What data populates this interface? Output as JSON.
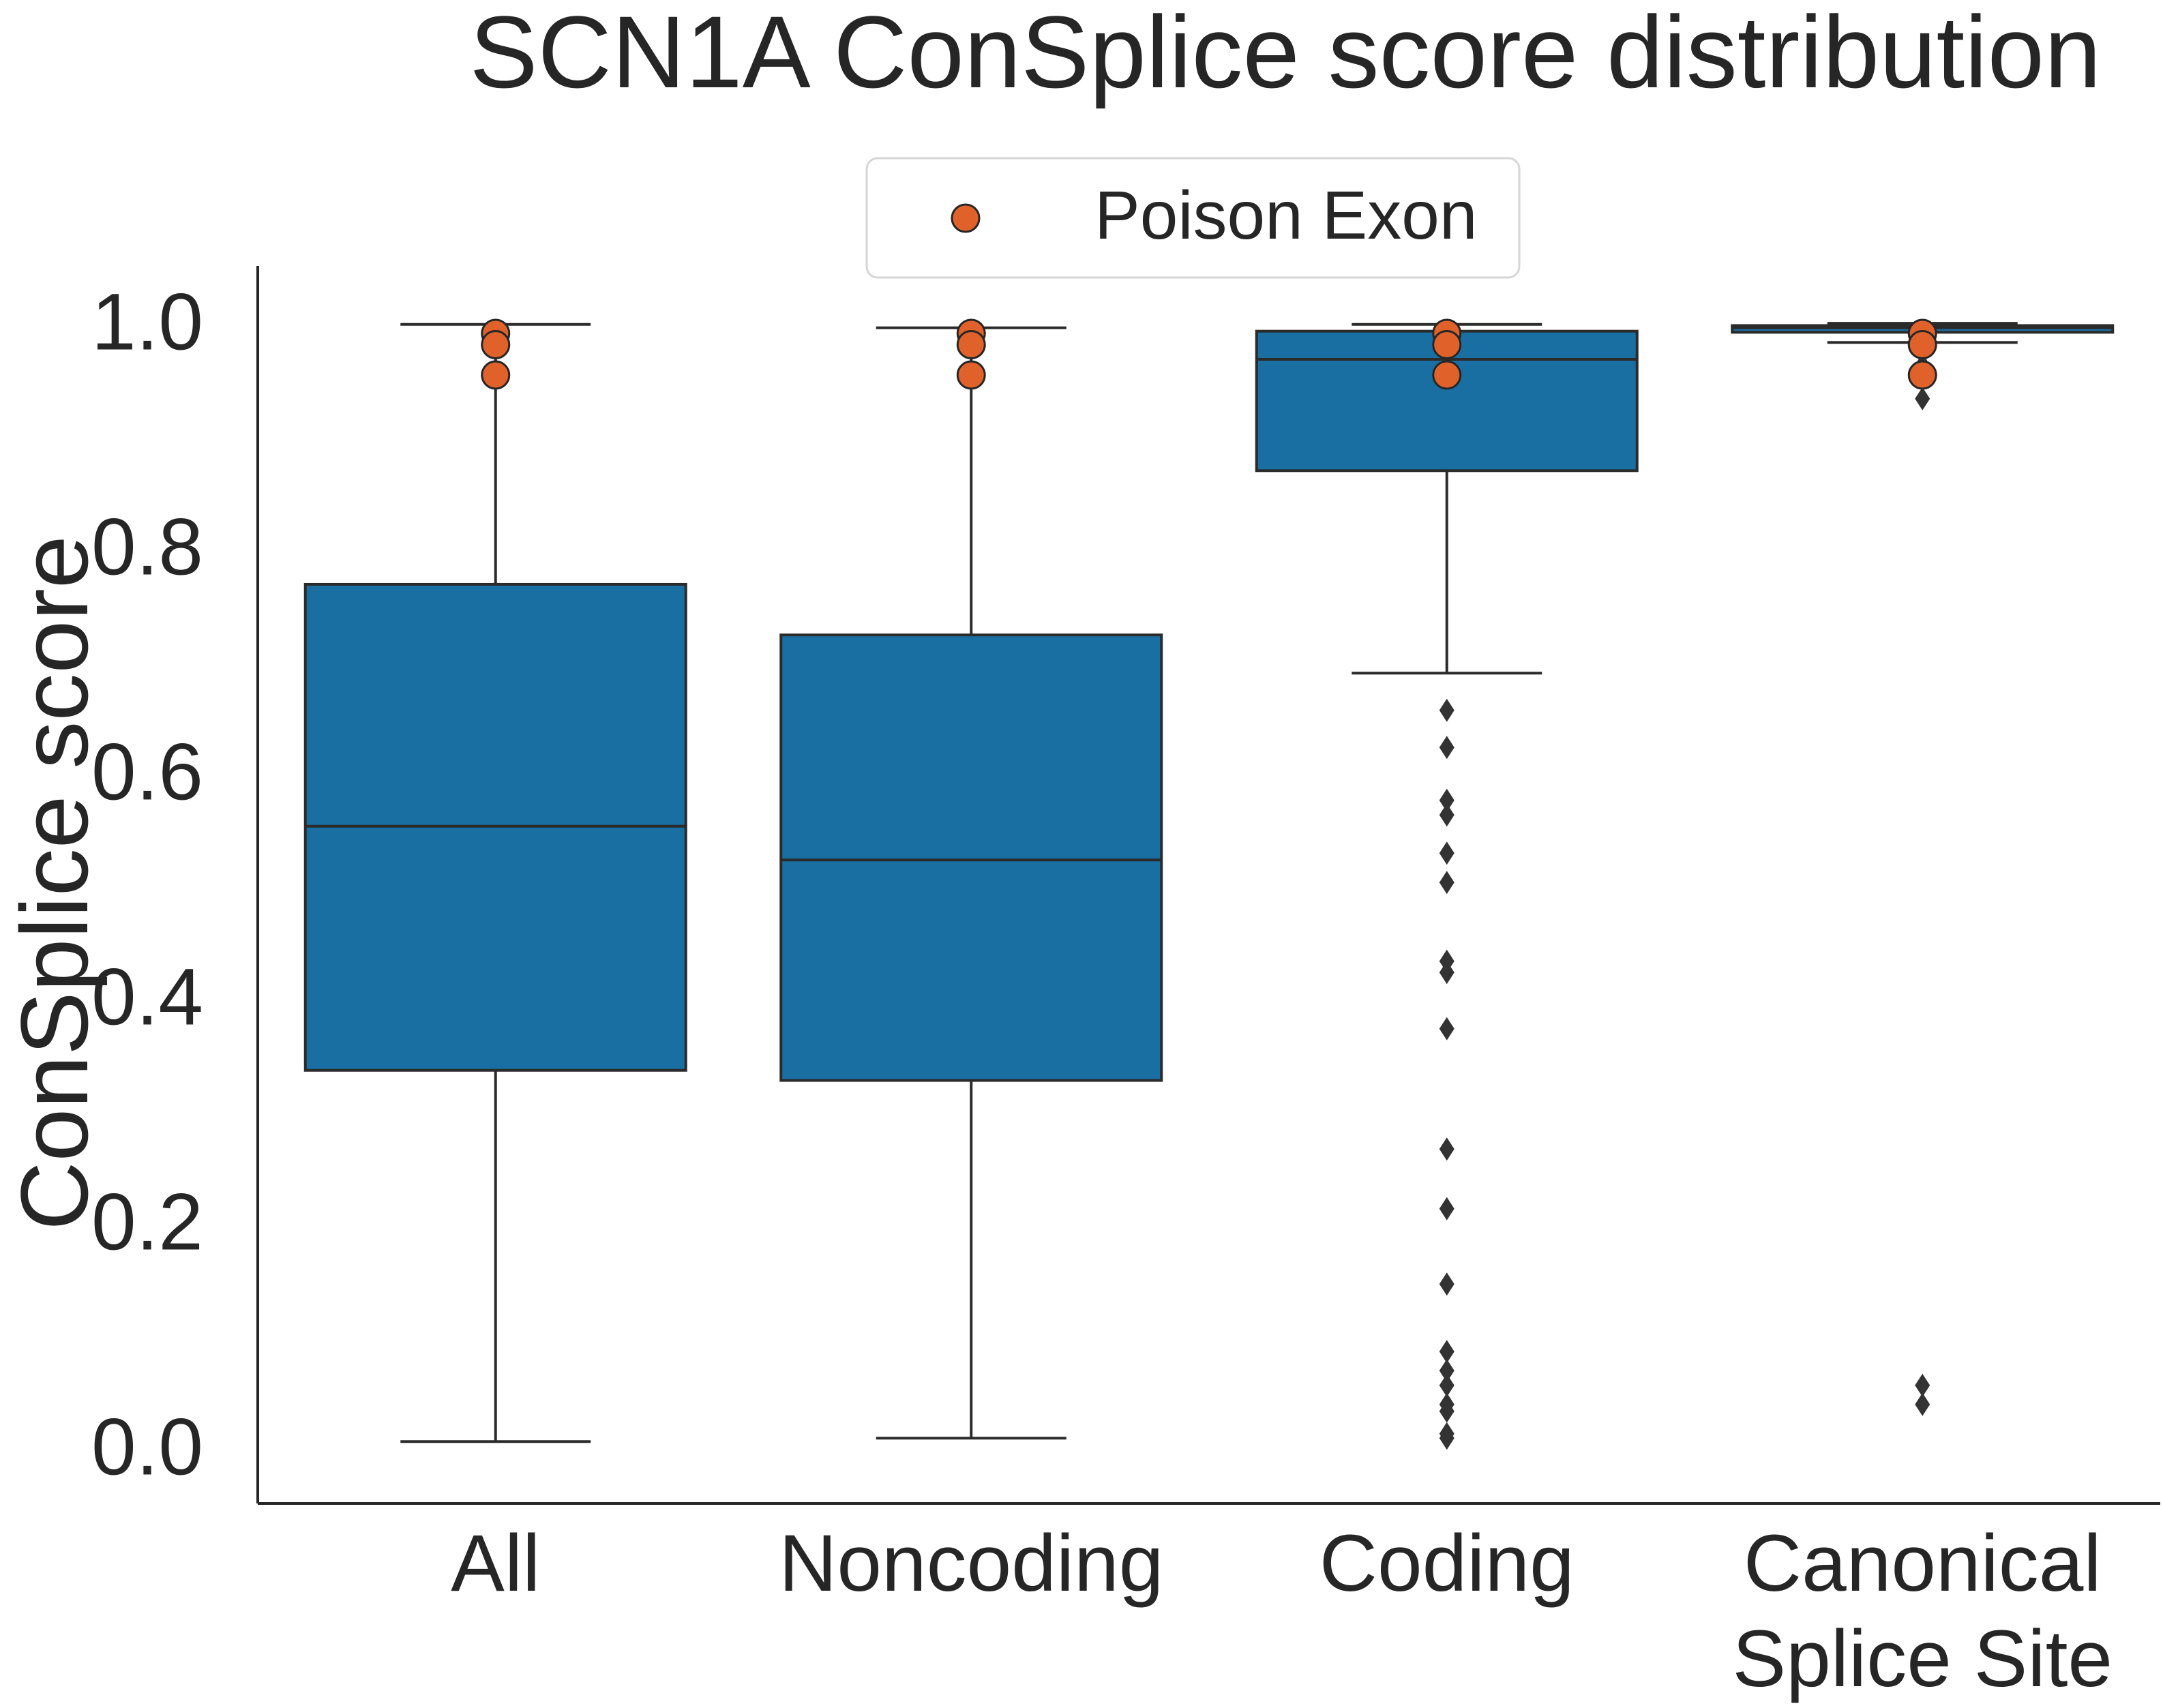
{
  "chart_data": {
    "type": "box",
    "title": "SCN1A ConSplice score distribution",
    "xlabel": "",
    "ylabel": "ConSplice score",
    "ylim": [
      -0.05,
      1.05
    ],
    "yticks": [
      "0.0",
      "0.2",
      "0.4",
      "0.6",
      "0.8",
      "1.0"
    ],
    "grid": false,
    "legend": {
      "position": "top-center",
      "entries": [
        "Poison Exon"
      ]
    },
    "colors": {
      "box": "#1a6fa2",
      "edge": "#2b2b2b",
      "poison": "#e0622a"
    },
    "categories": [
      {
        "label_lines": [
          "All"
        ],
        "whisker_low": 0.005,
        "q1": 0.335,
        "median": 0.552,
        "q3": 0.767,
        "whisker_high": 0.998,
        "outliers": []
      },
      {
        "label_lines": [
          "Noncoding"
        ],
        "whisker_low": 0.008,
        "q1": 0.326,
        "median": 0.522,
        "q3": 0.722,
        "whisker_high": 0.995,
        "outliers": []
      },
      {
        "label_lines": [
          "Coding"
        ],
        "whisker_low": 0.688,
        "q1": 0.868,
        "median": 0.967,
        "q3": 0.992,
        "whisker_high": 0.998,
        "outliers": [
          0.655,
          0.622,
          0.575,
          0.562,
          0.528,
          0.502,
          0.432,
          0.422,
          0.372,
          0.265,
          0.212,
          0.145,
          0.085,
          0.068,
          0.055,
          0.038,
          0.032,
          0.012,
          0.008
        ]
      },
      {
        "label_lines": [
          "Canonical",
          "Splice Site"
        ],
        "whisker_low": 0.982,
        "q1": 0.991,
        "median": 0.995,
        "q3": 0.997,
        "whisker_high": 0.999,
        "outliers": [
          0.972,
          0.962,
          0.952,
          0.932,
          0.055,
          0.038
        ]
      }
    ],
    "poison_exon": [
      {
        "category": "All",
        "values": [
          0.99,
          0.98,
          0.953
        ]
      },
      {
        "category": "Noncoding",
        "values": [
          0.99,
          0.98,
          0.953
        ]
      },
      {
        "category": "Coding",
        "values": [
          0.99,
          0.98,
          0.953
        ]
      },
      {
        "category": "Canonical Splice Site",
        "values": [
          0.99,
          0.98,
          0.953
        ]
      }
    ]
  }
}
